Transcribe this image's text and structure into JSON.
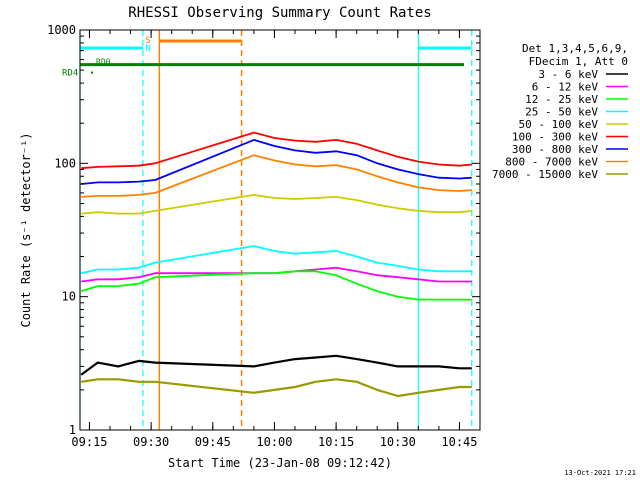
{
  "chart_data": {
    "type": "line",
    "title": "RHESSI Observing Summary Count Rates",
    "xlabel": "Start Time (23-Jan-08 09:12:42)",
    "ylabel": "Count Rate (s⁻¹ detector⁻¹)",
    "yscale": "log",
    "ylim": [
      1,
      1000
    ],
    "xlim": [
      "09:12:42",
      "10:50:00"
    ],
    "x_ticks": [
      "09:15",
      "09:30",
      "09:45",
      "10:00",
      "10:15",
      "10:30",
      "10:45"
    ],
    "y_ticks": [
      "1",
      "10",
      "100",
      "1000"
    ],
    "grid": false,
    "legend_position": "right",
    "legend_header": [
      "Det 1,3,4,5,6,9,",
      "FDecim 1, Att 0"
    ],
    "legend_color": "#000000",
    "series": [
      {
        "name": "3 - 6 keV",
        "color": "#000000",
        "points": [
          [
            "09:13",
            2.6
          ],
          [
            "09:17",
            3.2
          ],
          [
            "09:22",
            3.0
          ],
          [
            "09:27",
            3.3
          ],
          [
            "09:31",
            3.2
          ],
          [
            "09:55",
            3.0
          ],
          [
            "10:00",
            3.2
          ],
          [
            "10:05",
            3.4
          ],
          [
            "10:10",
            3.5
          ],
          [
            "10:15",
            3.6
          ],
          [
            "10:20",
            3.4
          ],
          [
            "10:25",
            3.2
          ],
          [
            "10:30",
            3.0
          ],
          [
            "10:35",
            3.0
          ],
          [
            "10:40",
            3.0
          ],
          [
            "10:45",
            2.9
          ],
          [
            "10:48",
            2.9
          ]
        ]
      },
      {
        "name": "6 - 12 keV",
        "color": "#ff00ff",
        "points": [
          [
            "09:13",
            13
          ],
          [
            "09:17",
            13.5
          ],
          [
            "09:22",
            13.5
          ],
          [
            "09:27",
            14
          ],
          [
            "09:31",
            15
          ],
          [
            "09:55",
            15
          ],
          [
            "10:00",
            15
          ],
          [
            "10:05",
            15.5
          ],
          [
            "10:10",
            16
          ],
          [
            "10:15",
            16.5
          ],
          [
            "10:20",
            15.5
          ],
          [
            "10:25",
            14.5
          ],
          [
            "10:30",
            14
          ],
          [
            "10:35",
            13.5
          ],
          [
            "10:40",
            13
          ],
          [
            "10:45",
            13
          ],
          [
            "10:48",
            13
          ]
        ]
      },
      {
        "name": "12 - 25 keV",
        "color": "#00ff00",
        "points": [
          [
            "09:13",
            11
          ],
          [
            "09:17",
            12
          ],
          [
            "09:22",
            12
          ],
          [
            "09:27",
            12.5
          ],
          [
            "09:31",
            14
          ],
          [
            "09:55",
            15
          ],
          [
            "10:00",
            15
          ],
          [
            "10:05",
            15.5
          ],
          [
            "10:10",
            15.5
          ],
          [
            "10:15",
            14.5
          ],
          [
            "10:20",
            12.5
          ],
          [
            "10:25",
            11
          ],
          [
            "10:30",
            10
          ],
          [
            "10:35",
            9.5
          ],
          [
            "10:40",
            9.5
          ],
          [
            "10:45",
            9.5
          ],
          [
            "10:48",
            9.5
          ]
        ]
      },
      {
        "name": "25 - 50 keV",
        "color": "#00ffff",
        "points": [
          [
            "09:13",
            15
          ],
          [
            "09:17",
            16
          ],
          [
            "09:22",
            16
          ],
          [
            "09:27",
            16.5
          ],
          [
            "09:31",
            18
          ],
          [
            "09:55",
            24
          ],
          [
            "10:00",
            22
          ],
          [
            "10:05",
            21
          ],
          [
            "10:10",
            21.5
          ],
          [
            "10:15",
            22
          ],
          [
            "10:20",
            20
          ],
          [
            "10:25",
            18
          ],
          [
            "10:30",
            17
          ],
          [
            "10:35",
            16
          ],
          [
            "10:40",
            15.5
          ],
          [
            "10:45",
            15.5
          ],
          [
            "10:48",
            15.5
          ]
        ]
      },
      {
        "name": "50 - 100 keV",
        "color": "#cccc00",
        "points": [
          [
            "09:13",
            42
          ],
          [
            "09:17",
            43
          ],
          [
            "09:22",
            42
          ],
          [
            "09:27",
            42
          ],
          [
            "09:31",
            44
          ],
          [
            "09:55",
            58
          ],
          [
            "10:00",
            55
          ],
          [
            "10:05",
            54
          ],
          [
            "10:10",
            55
          ],
          [
            "10:15",
            56
          ],
          [
            "10:20",
            53
          ],
          [
            "10:25",
            49
          ],
          [
            "10:30",
            46
          ],
          [
            "10:35",
            44
          ],
          [
            "10:40",
            43
          ],
          [
            "10:45",
            43
          ],
          [
            "10:48",
            44
          ]
        ]
      },
      {
        "name": "100 - 300 keV",
        "color": "#ff0000",
        "points": [
          [
            "09:13",
            92
          ],
          [
            "09:17",
            94
          ],
          [
            "09:22",
            95
          ],
          [
            "09:27",
            96
          ],
          [
            "09:31",
            100
          ],
          [
            "09:55",
            170
          ],
          [
            "10:00",
            155
          ],
          [
            "10:05",
            148
          ],
          [
            "10:10",
            145
          ],
          [
            "10:15",
            150
          ],
          [
            "10:20",
            140
          ],
          [
            "10:25",
            125
          ],
          [
            "10:30",
            112
          ],
          [
            "10:35",
            103
          ],
          [
            "10:40",
            98
          ],
          [
            "10:45",
            96
          ],
          [
            "10:48",
            98
          ]
        ]
      },
      {
        "name": "300 - 800 keV",
        "color": "#0000ff",
        "points": [
          [
            "09:13",
            70
          ],
          [
            "09:17",
            72
          ],
          [
            "09:22",
            72
          ],
          [
            "09:27",
            73
          ],
          [
            "09:31",
            75
          ],
          [
            "09:55",
            150
          ],
          [
            "10:00",
            135
          ],
          [
            "10:05",
            125
          ],
          [
            "10:10",
            120
          ],
          [
            "10:15",
            123
          ],
          [
            "10:20",
            115
          ],
          [
            "10:25",
            100
          ],
          [
            "10:30",
            90
          ],
          [
            "10:35",
            83
          ],
          [
            "10:40",
            78
          ],
          [
            "10:45",
            77
          ],
          [
            "10:48",
            78
          ]
        ]
      },
      {
        "name": "800 - 7000 keV",
        "color": "#ff8000",
        "points": [
          [
            "09:13",
            56
          ],
          [
            "09:17",
            57
          ],
          [
            "09:22",
            57
          ],
          [
            "09:27",
            58
          ],
          [
            "09:31",
            60
          ],
          [
            "09:55",
            115
          ],
          [
            "10:00",
            105
          ],
          [
            "10:05",
            98
          ],
          [
            "10:10",
            95
          ],
          [
            "10:15",
            97
          ],
          [
            "10:20",
            90
          ],
          [
            "10:25",
            80
          ],
          [
            "10:30",
            72
          ],
          [
            "10:35",
            66
          ],
          [
            "10:40",
            63
          ],
          [
            "10:45",
            62
          ],
          [
            "10:48",
            63
          ]
        ]
      },
      {
        "name": "7000 - 15000 keV",
        "color": "#999900",
        "points": [
          [
            "09:13",
            2.3
          ],
          [
            "09:17",
            2.4
          ],
          [
            "09:22",
            2.4
          ],
          [
            "09:27",
            2.3
          ],
          [
            "09:31",
            2.3
          ],
          [
            "09:55",
            1.9
          ],
          [
            "10:00",
            2.0
          ],
          [
            "10:05",
            2.1
          ],
          [
            "10:10",
            2.3
          ],
          [
            "10:15",
            2.4
          ],
          [
            "10:20",
            2.3
          ],
          [
            "10:25",
            2.0
          ],
          [
            "10:30",
            1.8
          ],
          [
            "10:35",
            1.9
          ],
          [
            "10:40",
            2.0
          ],
          [
            "10:45",
            2.1
          ],
          [
            "10:48",
            2.1
          ]
        ]
      }
    ],
    "markers": {
      "night_lines": {
        "color": "#00ffff",
        "solid": [
          "09:12:42",
          "10:35"
        ],
        "dashed": [
          "09:28",
          "10:48"
        ]
      },
      "saa_lines": {
        "color": "#ff8000",
        "solid": [
          "09:32"
        ],
        "dashed": [
          "09:52"
        ]
      },
      "rd0_band": {
        "label": "RD0",
        "color": "#008000",
        "value": 550
      },
      "rd4_label": "RD4",
      "s_label": "S",
      "n_label": "N"
    },
    "timestamp": "13-Oct-2021 17:21"
  }
}
